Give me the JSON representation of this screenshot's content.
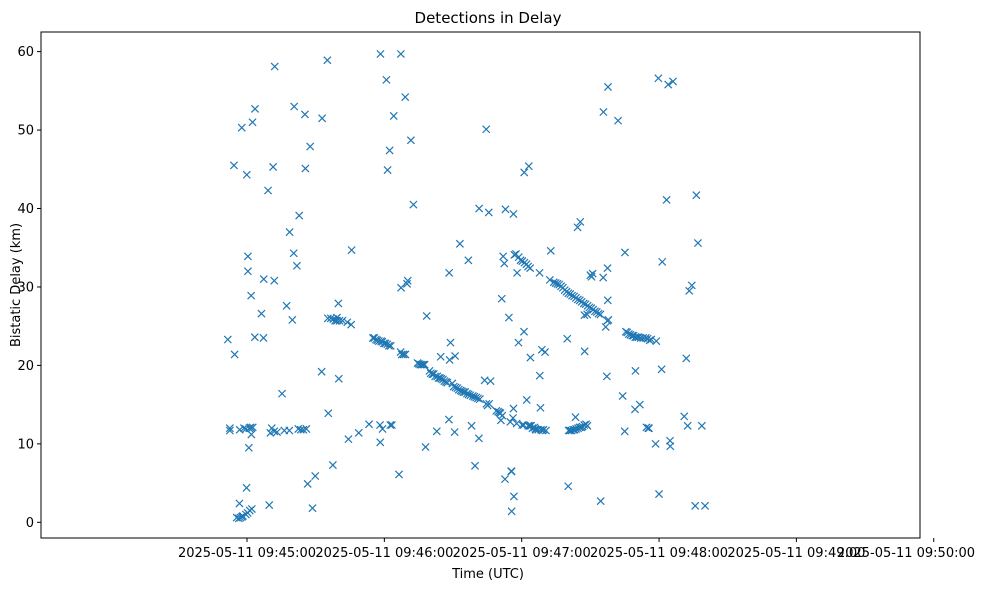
{
  "chart_data": {
    "type": "scatter",
    "title": "Detections in Delay",
    "xlabel": "Time (UTC)",
    "ylabel": "Bistatic Delay (km)",
    "marker": "x",
    "color": "#1f77b4",
    "xlim": [
      -50,
      334
    ],
    "ylim": [
      -2,
      62.5
    ],
    "x_units": "seconds after 2025-05-11 09:44:20",
    "xticks": [
      {
        "value": 40,
        "label": "2025-05-11 09:45:00"
      },
      {
        "value": 100,
        "label": "2025-05-11 09:46:00"
      },
      {
        "value": 160,
        "label": "2025-05-11 09:47:00"
      },
      {
        "value": 220,
        "label": "2025-05-11 09:48:00"
      },
      {
        "value": 280,
        "label": "2025-05-11 09:49:00"
      },
      {
        "value": 340,
        "label": "2025-05-11 09:50:00"
      }
    ],
    "yticks": [
      {
        "value": 0,
        "label": "0"
      },
      {
        "value": 10,
        "label": "10"
      },
      {
        "value": 20,
        "label": "20"
      },
      {
        "value": 30,
        "label": "30"
      },
      {
        "value": 40,
        "label": "40"
      },
      {
        "value": 50,
        "label": "50"
      },
      {
        "value": 60,
        "label": "60"
      }
    ],
    "points": [
      [
        31.6,
        23.3
      ],
      [
        32.5,
        12.0
      ],
      [
        32.5,
        11.7
      ],
      [
        34.6,
        21.4
      ],
      [
        34.3,
        45.5
      ],
      [
        35.5,
        0.6
      ],
      [
        36.4,
        0.5
      ],
      [
        36.7,
        2.4
      ],
      [
        36.8,
        11.8
      ],
      [
        37.7,
        50.3
      ],
      [
        37.1,
        0.6
      ],
      [
        37.8,
        0.7
      ],
      [
        38.2,
        0.8
      ],
      [
        38.7,
        12.0
      ],
      [
        39.5,
        11.9
      ],
      [
        39.5,
        1.0
      ],
      [
        39.8,
        4.4
      ],
      [
        39.9,
        44.3
      ],
      [
        40.3,
        1.2
      ],
      [
        40.4,
        33.9
      ],
      [
        40.4,
        32.0
      ],
      [
        40.8,
        9.5
      ],
      [
        41.0,
        12.0
      ],
      [
        41.2,
        1.5
      ],
      [
        41.6,
        12.1
      ],
      [
        41.8,
        28.9
      ],
      [
        41.9,
        11.2
      ],
      [
        42.1,
        1.7
      ],
      [
        42.4,
        51.0
      ],
      [
        42.5,
        12.1
      ],
      [
        43.4,
        23.6
      ],
      [
        43.5,
        52.7
      ],
      [
        46.3,
        26.6
      ],
      [
        47.3,
        31.0
      ],
      [
        47.2,
        23.5
      ],
      [
        49.2,
        42.3
      ],
      [
        49.7,
        2.2
      ],
      [
        50.2,
        11.4
      ],
      [
        50.8,
        12.0
      ],
      [
        51.4,
        45.3
      ],
      [
        51.9,
        11.6
      ],
      [
        51.9,
        30.8
      ],
      [
        52.1,
        58.1
      ],
      [
        53.1,
        11.5
      ],
      [
        55.3,
        16.4
      ],
      [
        56.3,
        11.7
      ],
      [
        57.3,
        27.6
      ],
      [
        58.5,
        11.7
      ],
      [
        58.6,
        37.0
      ],
      [
        59.8,
        25.8
      ],
      [
        60.4,
        34.3
      ],
      [
        60.6,
        53.0
      ],
      [
        61.8,
        32.7
      ],
      [
        62.4,
        11.9
      ],
      [
        62.8,
        39.1
      ],
      [
        63.5,
        11.8
      ],
      [
        64.6,
        11.8
      ],
      [
        65.3,
        52.0
      ],
      [
        65.5,
        45.1
      ],
      [
        65.9,
        11.9
      ],
      [
        66.5,
        4.9
      ],
      [
        67.6,
        47.9
      ],
      [
        68.6,
        1.8
      ],
      [
        69.8,
        5.9
      ],
      [
        72.6,
        19.2
      ],
      [
        72.8,
        51.5
      ],
      [
        75.1,
        58.9
      ],
      [
        75.3,
        26.0
      ],
      [
        75.5,
        13.9
      ],
      [
        76.6,
        26.0
      ],
      [
        77.5,
        7.3
      ],
      [
        77.7,
        25.9
      ],
      [
        78.5,
        25.7
      ],
      [
        79.3,
        26.1
      ],
      [
        79.3,
        25.7
      ],
      [
        79.9,
        27.9
      ],
      [
        80.1,
        18.3
      ],
      [
        80.4,
        25.7
      ],
      [
        81.7,
        25.7
      ],
      [
        83.8,
        25.5
      ],
      [
        84.3,
        10.6
      ],
      [
        85.5,
        25.2
      ],
      [
        85.7,
        34.7
      ],
      [
        88.8,
        11.4
      ],
      [
        93.3,
        12.5
      ],
      [
        95.0,
        23.5
      ],
      [
        95.6,
        23.5
      ],
      [
        96.3,
        23.3
      ],
      [
        96.9,
        23.2
      ],
      [
        97.6,
        23.1
      ],
      [
        98.1,
        12.4
      ],
      [
        98.2,
        10.2
      ],
      [
        98.3,
        59.7
      ],
      [
        98.6,
        23.1
      ],
      [
        99.1,
        23.0
      ],
      [
        99.2,
        11.9
      ],
      [
        99.8,
        22.8
      ],
      [
        100.5,
        22.8
      ],
      [
        100.9,
        56.4
      ],
      [
        101.3,
        22.7
      ],
      [
        101.4,
        44.9
      ],
      [
        102.0,
        22.5
      ],
      [
        102.3,
        47.4
      ],
      [
        102.6,
        12.4
      ],
      [
        102.8,
        22.5
      ],
      [
        103.3,
        12.4
      ],
      [
        104.1,
        51.8
      ],
      [
        106.4,
        6.1
      ],
      [
        107.1,
        21.7
      ],
      [
        107.2,
        59.7
      ],
      [
        107.3,
        29.9
      ],
      [
        107.6,
        21.4
      ],
      [
        108.4,
        21.4
      ],
      [
        109.1,
        54.2
      ],
      [
        109.2,
        21.4
      ],
      [
        109.9,
        30.4
      ],
      [
        110.2,
        30.8
      ],
      [
        111.6,
        48.7
      ],
      [
        112.7,
        40.5
      ],
      [
        114.5,
        20.3
      ],
      [
        115.1,
        20.2
      ],
      [
        115.7,
        20.1
      ],
      [
        116.3,
        20.1
      ],
      [
        117.0,
        20.1
      ],
      [
        117.6,
        20.1
      ],
      [
        118.0,
        9.6
      ],
      [
        118.5,
        26.3
      ],
      [
        119.7,
        19.3
      ],
      [
        120.3,
        19.0
      ],
      [
        121.0,
        18.9
      ],
      [
        121.6,
        18.9
      ],
      [
        122.2,
        18.6
      ],
      [
        122.9,
        11.6
      ],
      [
        123.1,
        18.6
      ],
      [
        123.7,
        18.4
      ],
      [
        124.3,
        18.4
      ],
      [
        124.6,
        21.1
      ],
      [
        124.9,
        18.3
      ],
      [
        125.6,
        18.2
      ],
      [
        126.2,
        18.0
      ],
      [
        126.9,
        17.9
      ],
      [
        127.5,
        17.8
      ],
      [
        128.2,
        13.1
      ],
      [
        128.3,
        31.8
      ],
      [
        128.5,
        20.7
      ],
      [
        128.9,
        22.9
      ],
      [
        129.7,
        17.7
      ],
      [
        130.3,
        17.3
      ],
      [
        130.7,
        11.5
      ],
      [
        130.9,
        21.2
      ],
      [
        131.1,
        17.2
      ],
      [
        131.9,
        17.1
      ],
      [
        132.5,
        16.9
      ],
      [
        133.0,
        35.5
      ],
      [
        133.3,
        16.8
      ],
      [
        133.9,
        16.7
      ],
      [
        134.6,
        16.6
      ],
      [
        135.3,
        16.6
      ],
      [
        136.1,
        16.4
      ],
      [
        136.7,
        33.4
      ],
      [
        136.8,
        16.3
      ],
      [
        137.6,
        16.2
      ],
      [
        138.1,
        12.3
      ],
      [
        138.6,
        16.1
      ],
      [
        139.3,
        16.0
      ],
      [
        139.6,
        7.2
      ],
      [
        140.1,
        15.9
      ],
      [
        140.9,
        15.8
      ],
      [
        141.3,
        10.7
      ],
      [
        141.4,
        40.0
      ],
      [
        141.7,
        15.7
      ],
      [
        143.8,
        18.1
      ],
      [
        144.5,
        50.1
      ],
      [
        144.6,
        15.1
      ],
      [
        145.1,
        14.9
      ],
      [
        145.6,
        39.5
      ],
      [
        145.8,
        15.1
      ],
      [
        146.4,
        18.0
      ],
      [
        148.9,
        14.2
      ],
      [
        149.7,
        14.1
      ],
      [
        150.3,
        14.0
      ],
      [
        150.7,
        13.9
      ],
      [
        150.9,
        13.0
      ],
      [
        151.3,
        28.5
      ],
      [
        151.5,
        13.6
      ],
      [
        151.9,
        33.9
      ],
      [
        152.4,
        33.0
      ],
      [
        152.7,
        5.5
      ],
      [
        152.9,
        39.9
      ],
      [
        154.4,
        26.1
      ],
      [
        155.0,
        12.8
      ],
      [
        155.4,
        6.5
      ],
      [
        155.6,
        6.5
      ],
      [
        155.6,
        1.4
      ],
      [
        156.2,
        13.3
      ],
      [
        156.4,
        14.5
      ],
      [
        156.4,
        39.3
      ],
      [
        156.6,
        3.3
      ],
      [
        156.8,
        34.1
      ],
      [
        157.5,
        34.2
      ],
      [
        157.8,
        12.6
      ],
      [
        158.0,
        31.8
      ],
      [
        158.6,
        22.9
      ],
      [
        158.7,
        33.8
      ],
      [
        159.5,
        33.4
      ],
      [
        160.2,
        12.4
      ],
      [
        160.3,
        33.3
      ],
      [
        160.9,
        12.4
      ],
      [
        161.0,
        24.3
      ],
      [
        161.1,
        44.6
      ],
      [
        161.2,
        33.1
      ],
      [
        162.1,
        32.9
      ],
      [
        162.2,
        15.6
      ],
      [
        162.8,
        32.6
      ],
      [
        162.9,
        12.3
      ],
      [
        163.1,
        45.4
      ],
      [
        163.5,
        12.3
      ],
      [
        163.7,
        32.4
      ],
      [
        163.8,
        21.0
      ],
      [
        164.1,
        12.3
      ],
      [
        164.7,
        12.0
      ],
      [
        165.6,
        12.1
      ],
      [
        166.0,
        11.9
      ],
      [
        166.2,
        11.8
      ],
      [
        167.2,
        11.8
      ],
      [
        167.8,
        31.8
      ],
      [
        167.9,
        18.7
      ],
      [
        168.2,
        14.6
      ],
      [
        168.4,
        11.8
      ],
      [
        168.8,
        22.0
      ],
      [
        169.0,
        11.7
      ],
      [
        169.5,
        11.8
      ],
      [
        170.2,
        21.7
      ],
      [
        170.6,
        11.7
      ],
      [
        172.3,
        30.9
      ],
      [
        172.7,
        34.6
      ],
      [
        174.0,
        30.6
      ],
      [
        174.8,
        30.5
      ],
      [
        175.6,
        30.4
      ],
      [
        176.4,
        30.3
      ],
      [
        177.2,
        30.1
      ],
      [
        178.0,
        29.9
      ],
      [
        178.8,
        29.6
      ],
      [
        179.6,
        29.4
      ],
      [
        179.9,
        23.4
      ],
      [
        180.3,
        4.6
      ],
      [
        180.4,
        29.2
      ],
      [
        180.5,
        11.7
      ],
      [
        181.1,
        11.7
      ],
      [
        181.2,
        29.1
      ],
      [
        181.8,
        11.7
      ],
      [
        182.0,
        28.9
      ],
      [
        182.5,
        11.8
      ],
      [
        182.9,
        28.8
      ],
      [
        183.1,
        11.8
      ],
      [
        183.5,
        13.4
      ],
      [
        183.7,
        28.6
      ],
      [
        183.8,
        11.9
      ],
      [
        184.4,
        37.6
      ],
      [
        184.5,
        28.4
      ],
      [
        184.6,
        12.0
      ],
      [
        185.3,
        12.1
      ],
      [
        185.4,
        28.3
      ],
      [
        185.6,
        38.3
      ],
      [
        186.0,
        12.1
      ],
      [
        186.2,
        28.1
      ],
      [
        186.6,
        12.2
      ],
      [
        187.1,
        27.9
      ],
      [
        187.3,
        12.4
      ],
      [
        187.4,
        26.4
      ],
      [
        187.5,
        21.8
      ],
      [
        187.9,
        27.8
      ],
      [
        188.1,
        12.5
      ],
      [
        188.6,
        26.5
      ],
      [
        188.7,
        12.3
      ],
      [
        188.8,
        27.6
      ],
      [
        189.6,
        27.4
      ],
      [
        190.0,
        31.5
      ],
      [
        190.4,
        27.3
      ],
      [
        190.5,
        31.3
      ],
      [
        191.0,
        31.7
      ],
      [
        191.2,
        27.1
      ],
      [
        192.0,
        26.9
      ],
      [
        192.8,
        26.8
      ],
      [
        193.6,
        26.6
      ],
      [
        194.4,
        26.5
      ],
      [
        194.5,
        2.7
      ],
      [
        195.6,
        31.2
      ],
      [
        195.7,
        52.3
      ],
      [
        196.7,
        24.9
      ],
      [
        197.2,
        18.6
      ],
      [
        197.4,
        25.7
      ],
      [
        197.5,
        32.4
      ],
      [
        197.6,
        28.3
      ],
      [
        197.7,
        55.5
      ],
      [
        197.9,
        25.8
      ],
      [
        202.1,
        51.2
      ],
      [
        204.1,
        16.1
      ],
      [
        205.0,
        11.6
      ],
      [
        205.1,
        34.4
      ],
      [
        205.5,
        24.3
      ],
      [
        206.1,
        24.2
      ],
      [
        206.8,
        24.0
      ],
      [
        207.5,
        23.9
      ],
      [
        208.3,
        23.8
      ],
      [
        208.9,
        23.8
      ],
      [
        209.5,
        14.4
      ],
      [
        209.6,
        23.6
      ],
      [
        209.7,
        19.3
      ],
      [
        210.3,
        23.6
      ],
      [
        211.1,
        23.6
      ],
      [
        211.6,
        15.0
      ],
      [
        212.0,
        23.5
      ],
      [
        213.1,
        23.5
      ],
      [
        214.2,
        23.5
      ],
      [
        214.5,
        12.1
      ],
      [
        215.0,
        23.4
      ],
      [
        215.3,
        12.0
      ],
      [
        215.6,
        12.0
      ],
      [
        215.9,
        23.2
      ],
      [
        216.6,
        23.3
      ],
      [
        218.5,
        10.0
      ],
      [
        218.8,
        23.1
      ],
      [
        219.7,
        56.6
      ],
      [
        220.0,
        3.6
      ],
      [
        221.1,
        19.5
      ],
      [
        221.4,
        33.2
      ],
      [
        223.3,
        41.1
      ],
      [
        224.0,
        55.8
      ],
      [
        224.8,
        10.4
      ],
      [
        224.9,
        9.7
      ],
      [
        226.1,
        56.2
      ],
      [
        231.0,
        13.5
      ],
      [
        231.9,
        20.9
      ],
      [
        232.5,
        12.3
      ],
      [
        233.2,
        29.5
      ],
      [
        234.3,
        30.2
      ],
      [
        235.8,
        2.1
      ],
      [
        236.3,
        41.7
      ],
      [
        237.0,
        35.6
      ],
      [
        238.7,
        12.3
      ],
      [
        240.1,
        2.1
      ]
    ]
  }
}
